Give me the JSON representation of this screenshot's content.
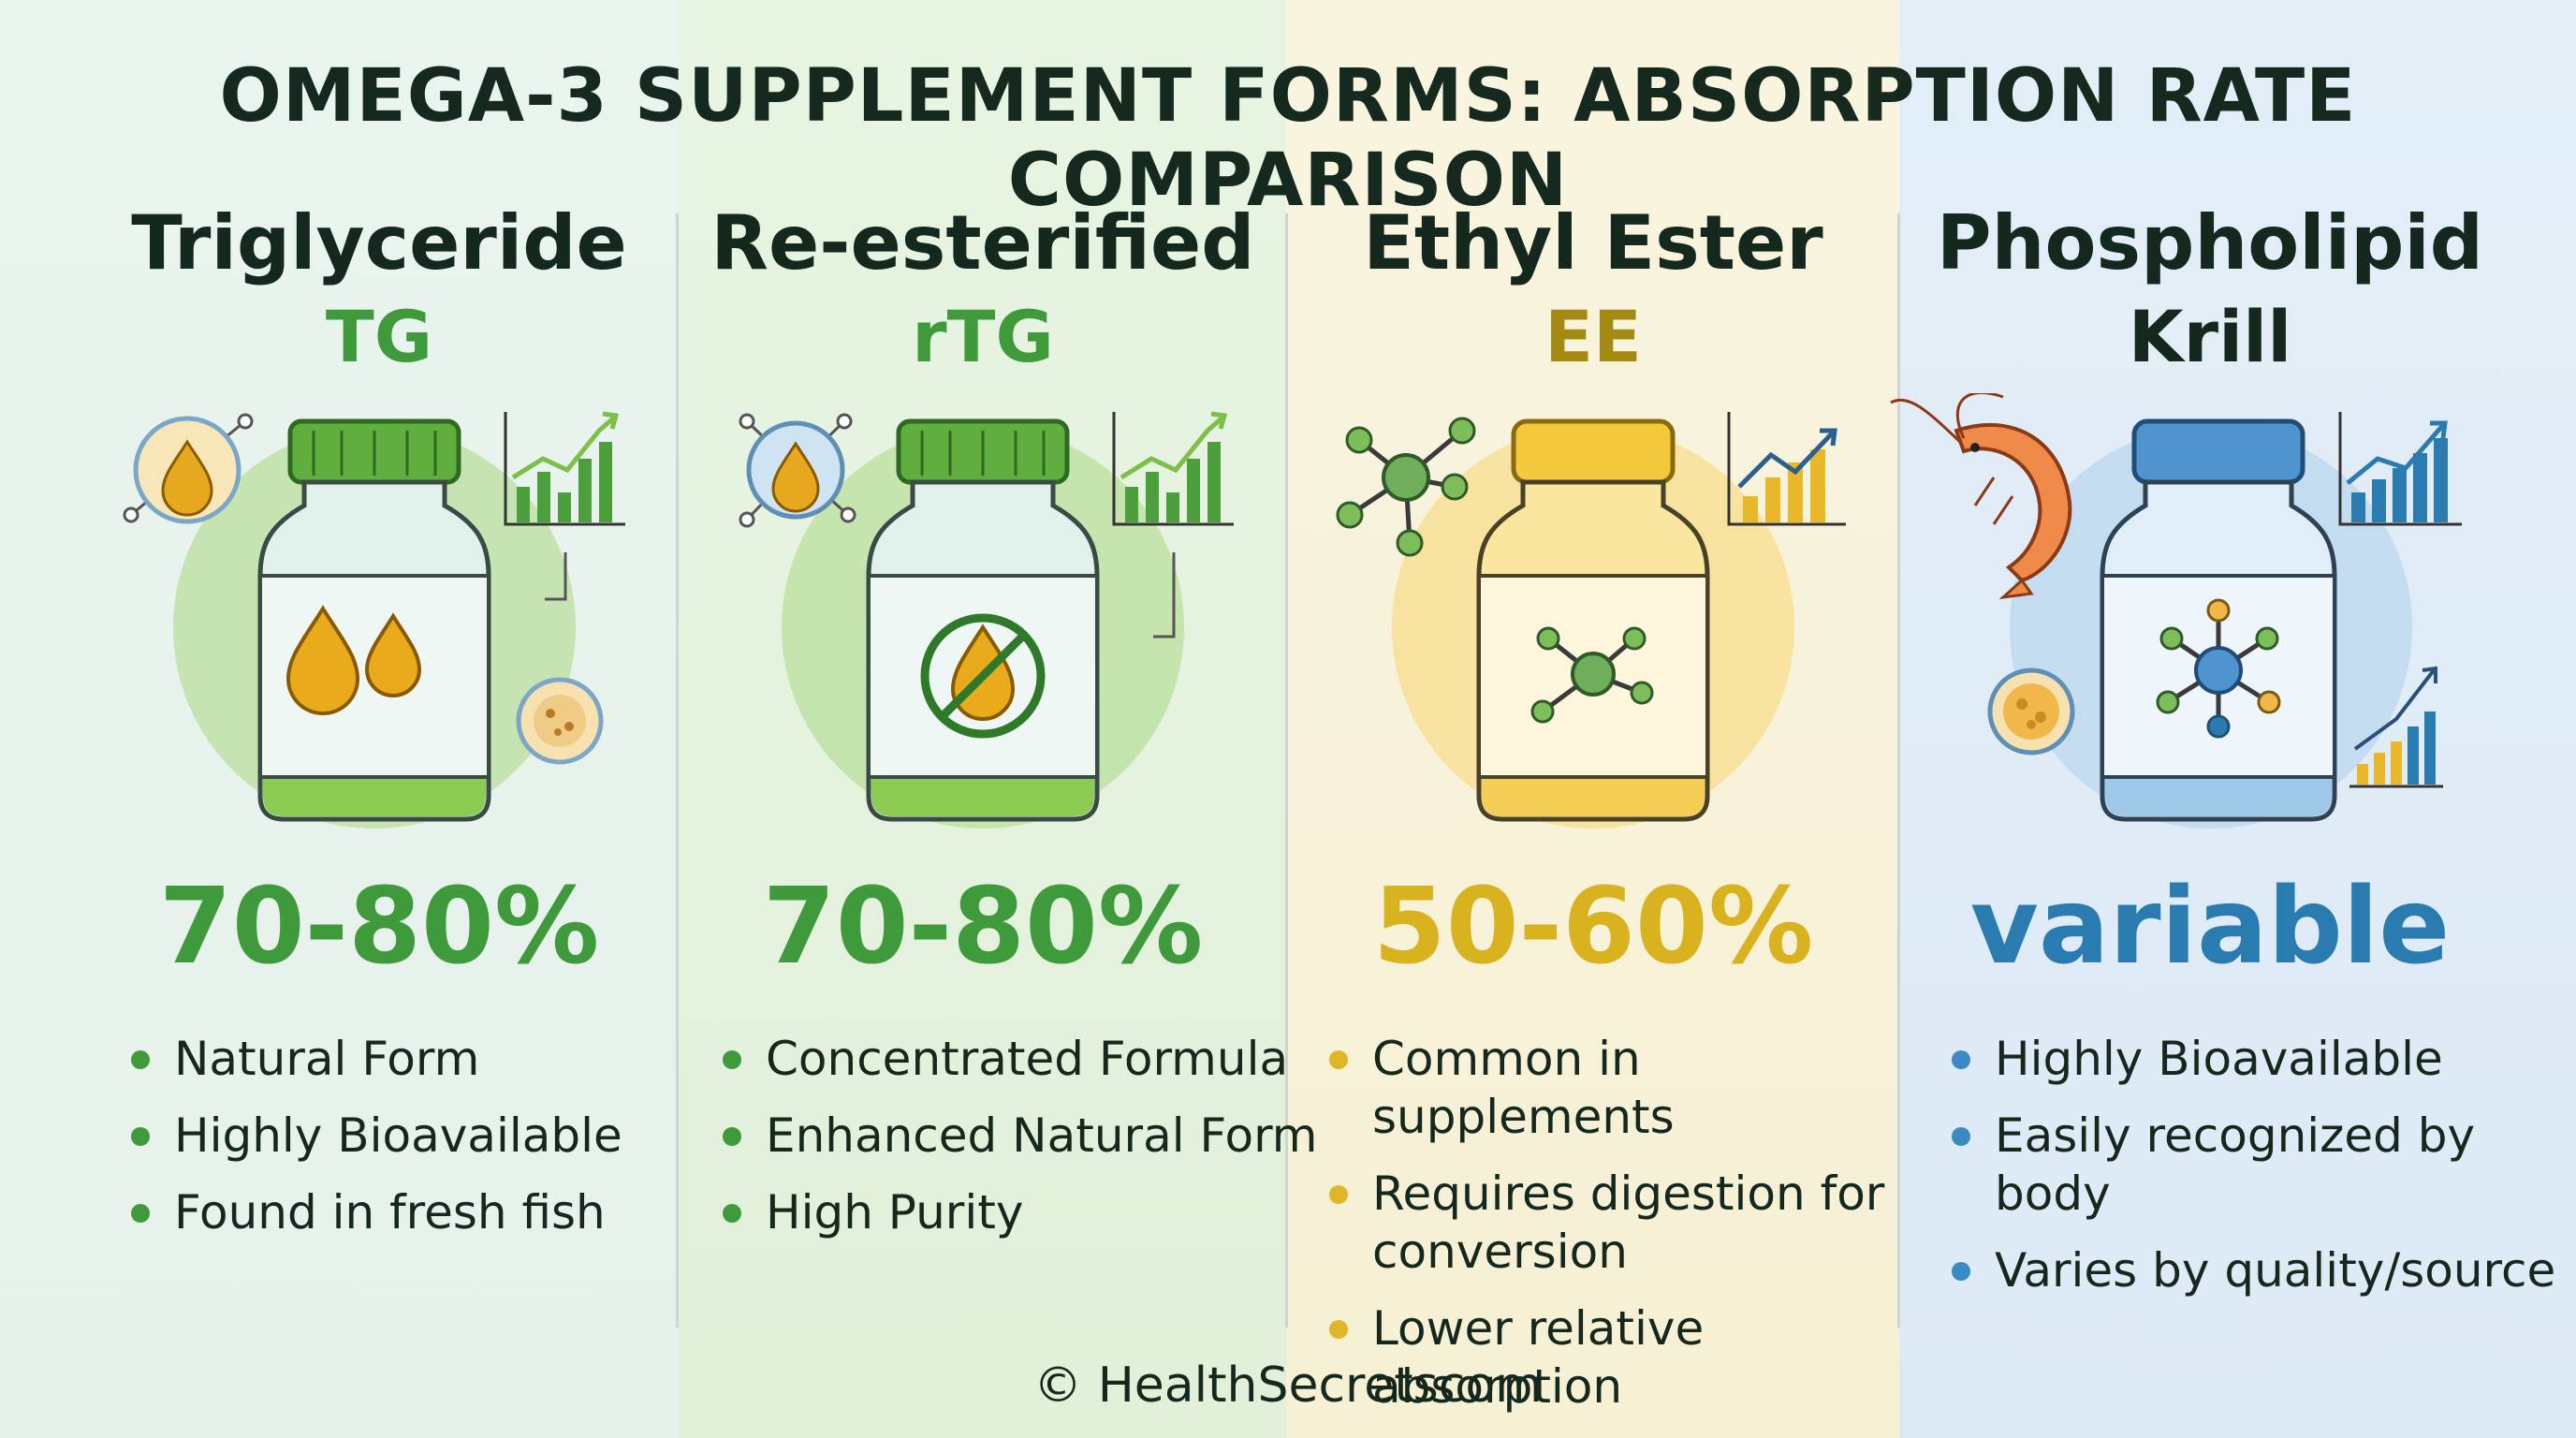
{
  "title": "OMEGA-3 SUPPLEMENT FORMS: ABSORPTION RATE COMPARISON",
  "colors": {
    "green": "#3f9a3c",
    "yellow": "#d9b21f",
    "blue": "#2a7bb0"
  },
  "columns": [
    {
      "name": "Triglyceride",
      "abbr": "TG",
      "rate": "70-80%",
      "bullets": [
        "Natural Form",
        "Highly Bioavailable",
        "Found in fresh fish"
      ]
    },
    {
      "name": "Re-esterified",
      "abbr": "rTG",
      "rate": "70-80%",
      "bullets": [
        "Concentrated Formula",
        "Enhanced Natural Form",
        "High Purity"
      ]
    },
    {
      "name": "Ethyl Ester",
      "abbr": "EE",
      "rate": "50-60%",
      "bullets": [
        "Common in supplements",
        "Requires digestion for conversion",
        "Lower relative absorption"
      ]
    },
    {
      "name": "Phospholipid",
      "abbr": "Krill",
      "rate": "variable",
      "bullets": [
        "Highly Bioavailable",
        "Easily recognized by body",
        "Varies by quality/source"
      ]
    }
  ],
  "footer": "© HealthSecretscom"
}
